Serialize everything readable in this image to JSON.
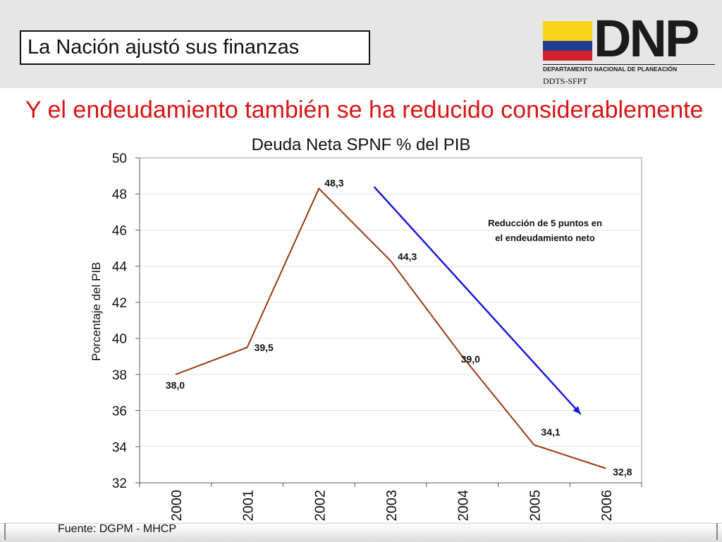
{
  "slide": {
    "title": "La Nación ajustó sus finanzas",
    "headline": "Y el endeudamiento también se ha reducido considerablemente",
    "source": "Fuente: DGPM - MHCP"
  },
  "logo": {
    "word": "DNP",
    "subtitle": "DEPARTAMENTO NACIONAL DE PLANEACIÓN",
    "unit": "DDTS-SFPT",
    "flag_colors": [
      "#f7d417",
      "#1f3f95",
      "#d3202a"
    ]
  },
  "chart_data": {
    "type": "line",
    "title": "Deuda Neta SPNF % del PIB",
    "xlabel": "",
    "ylabel": "Porcentaje del PIB",
    "categories": [
      "2000",
      "2001",
      "2002",
      "2003",
      "2004",
      "2005",
      "2006"
    ],
    "series": [
      {
        "name": "",
        "values": [
          38.0,
          39.5,
          48.3,
          44.3,
          39.0,
          34.1,
          32.8
        ],
        "labels": [
          "38,0",
          "39,5",
          "48,3",
          "44,3",
          "39,0",
          "34,1",
          "32,8"
        ],
        "color": "#9a3a12"
      }
    ],
    "ylim": [
      32,
      50
    ],
    "yticks": [
      32,
      34,
      36,
      38,
      40,
      42,
      44,
      46,
      48,
      50
    ],
    "grid": "horizontal",
    "annotation": {
      "text_line1": "Reducción de 5 puntos en",
      "text_line2": "el endeudamiento neto",
      "arrow_color": "#1a1adc",
      "arrow_from": {
        "x": 3.27,
        "y": 48.4
      },
      "arrow_to": {
        "x": 6.15,
        "y": 35.8
      }
    }
  }
}
